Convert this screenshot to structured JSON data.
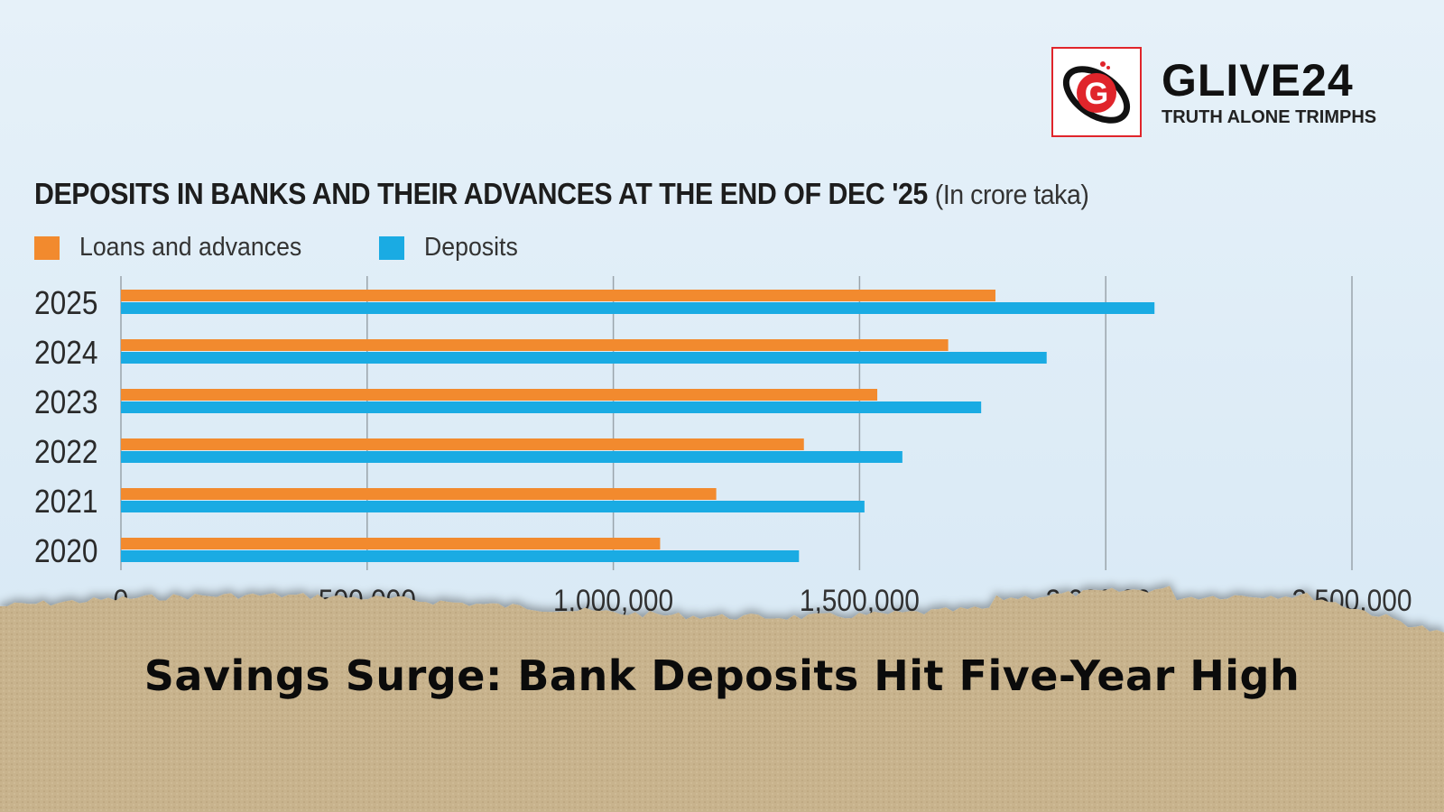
{
  "brand": {
    "name": "GLIVE24",
    "tagline": "TRUTH ALONE TRIMPHS",
    "logo_letter": "G",
    "accent": "#e0252b"
  },
  "caption": "Savings Surge: Bank Deposits Hit Five-Year High",
  "chart_data": {
    "type": "bar",
    "orientation": "horizontal",
    "title": "DEPOSITS IN BANKS AND THEIR ADVANCES AT THE END OF DEC '25",
    "unit": "(In crore taka)",
    "categories": [
      "2025",
      "2024",
      "2023",
      "2022",
      "2021",
      "2020"
    ],
    "series": [
      {
        "name": "Loans and advances",
        "color": "#f28a2e",
        "values": [
          1776000,
          1680000,
          1536000,
          1387000,
          1209000,
          1095000
        ]
      },
      {
        "name": "Deposits",
        "color": "#1aabe3",
        "values": [
          2099000,
          1880000,
          1747000,
          1587000,
          1510000,
          1377000
        ]
      }
    ],
    "xlim": [
      0,
      2500000
    ],
    "xticks": [
      0,
      500000,
      1000000,
      1500000,
      2000000,
      2500000
    ],
    "xtick_labels": [
      "0",
      "500,000",
      "1,000,000",
      "1,500,000",
      "2,000,000",
      "2,500,000"
    ],
    "grid": "vertical",
    "legend": "top-left"
  }
}
